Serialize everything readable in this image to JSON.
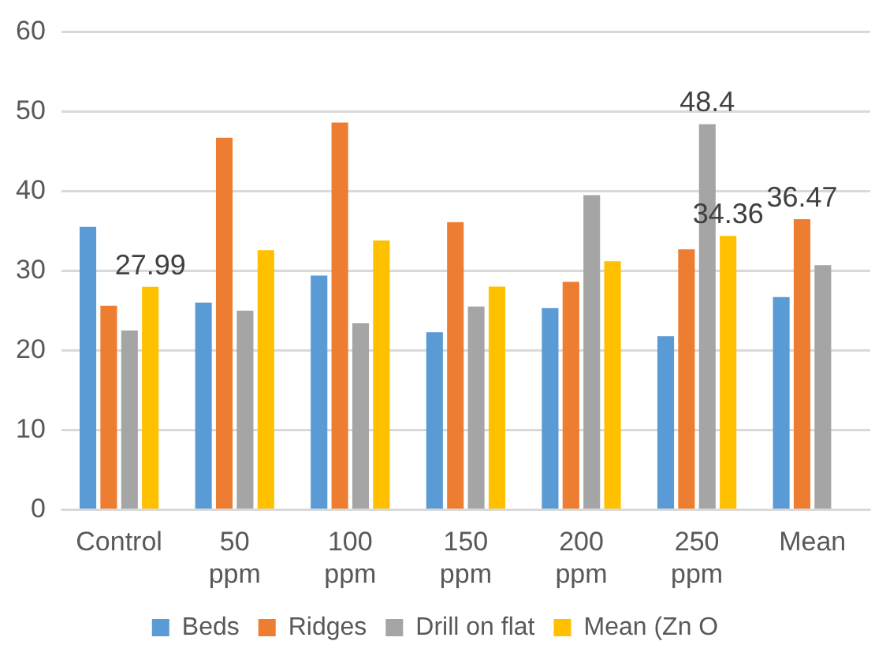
{
  "chart_data": {
    "type": "bar",
    "categories": [
      "Control",
      "50 ppm",
      "100 ppm",
      "150 ppm",
      "200 ppm",
      "250 ppm",
      "Mean"
    ],
    "series": [
      {
        "name": "Beds",
        "color": "#5b9bd5",
        "values": [
          35.5,
          26.0,
          29.4,
          22.3,
          25.3,
          21.8,
          26.7
        ],
        "value_labels": [
          null,
          null,
          null,
          null,
          null,
          null,
          null
        ]
      },
      {
        "name": "Ridges",
        "color": "#ed7d31",
        "values": [
          25.6,
          46.7,
          48.6,
          36.1,
          28.6,
          32.7,
          36.47
        ],
        "value_labels": [
          null,
          null,
          null,
          null,
          null,
          null,
          "36.47"
        ]
      },
      {
        "name": "Drill on flat",
        "color": "#a5a5a5",
        "values": [
          22.5,
          25.0,
          23.4,
          25.5,
          39.5,
          48.4,
          30.7
        ],
        "value_labels": [
          null,
          null,
          null,
          null,
          null,
          "48.4",
          null
        ]
      },
      {
        "name": "Mean (Zn O",
        "color": "#ffc000",
        "values": [
          27.99,
          32.6,
          33.8,
          28.0,
          31.2,
          34.36,
          null
        ],
        "value_labels": [
          "27.99",
          null,
          null,
          null,
          null,
          "34.36",
          null
        ]
      }
    ],
    "ylim": [
      0,
      60
    ],
    "yticks": [
      0,
      10,
      20,
      30,
      40,
      50,
      60
    ],
    "grid": "y",
    "legend": "bottom"
  }
}
